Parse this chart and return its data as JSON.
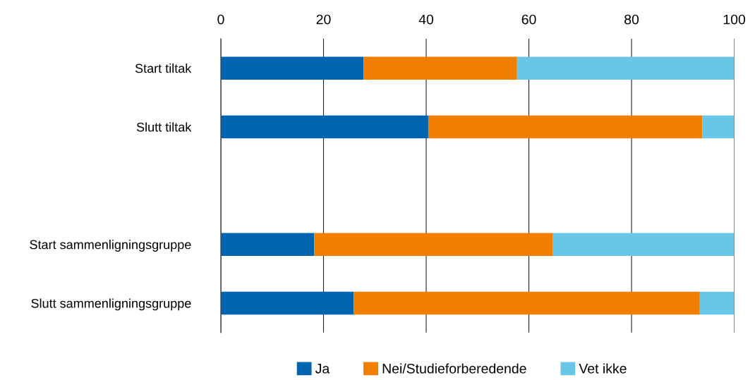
{
  "chart_data": {
    "type": "bar",
    "orientation": "horizontal",
    "stacked": true,
    "categories": [
      "Start tiltak",
      "Slutt tiltak",
      null,
      "Start sammenligningsgruppe",
      "Slutt sammenligningsgruppe"
    ],
    "series": [
      {
        "name": "Ja",
        "color": "#0065b0",
        "values": [
          27.8,
          40.4,
          null,
          18.2,
          25.9
        ]
      },
      {
        "name": "Nei/Studieforberedende",
        "color": "#f07f00",
        "values": [
          29.9,
          53.4,
          null,
          46.4,
          67.4
        ]
      },
      {
        "name": "Vet ikke",
        "color": "#6ac6e6",
        "values": [
          42.3,
          6.2,
          null,
          35.4,
          6.7
        ]
      }
    ],
    "xlim": [
      0,
      100
    ],
    "xticks": [
      0,
      20,
      40,
      60,
      80,
      100
    ],
    "grid": "x",
    "legend": "bottom"
  }
}
